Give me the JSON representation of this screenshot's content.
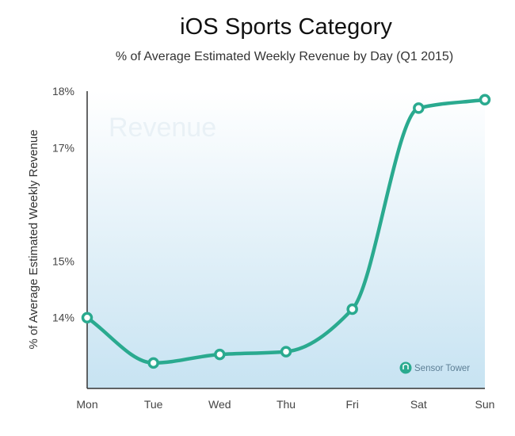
{
  "chart_data": {
    "type": "line",
    "title": "iOS Sports Category",
    "subtitle": "% of Average Estimated Weekly Revenue by Day (Q1 2015)",
    "xlabel": "",
    "ylabel": "% of  Average Estimated Weekly Revenue",
    "categories": [
      "Mon",
      "Tue",
      "Wed",
      "Thu",
      "Fri",
      "Sat",
      "Sun"
    ],
    "series": [
      {
        "name": "",
        "values": [
          14.0,
          13.2,
          13.35,
          13.4,
          14.15,
          17.7,
          17.85
        ]
      }
    ],
    "y_ticks": [
      {
        "value": 14,
        "label": "14%"
      },
      {
        "value": 15,
        "label": "15%"
      },
      {
        "value": 17,
        "label": "17%"
      },
      {
        "value": 18,
        "label": "18%"
      }
    ],
    "ylim": [
      12.75,
      18
    ],
    "grid": false,
    "legend": "none",
    "watermark": "Revenue",
    "brand": "Sensor Tower",
    "colors": {
      "line": "#2aaa8f",
      "marker_fill": "#ffffff",
      "bg_top": "#ffffff",
      "bg_bottom": "#c7e3f2",
      "axis": "#333333"
    }
  }
}
